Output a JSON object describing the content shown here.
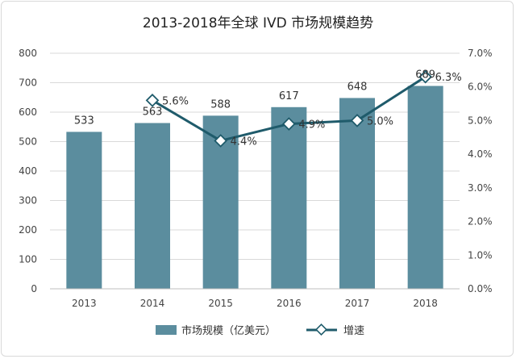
{
  "chart_data": {
    "type": "bar",
    "title": "2013-2018年全球 IVD 市场规模趋势",
    "categories": [
      "2013",
      "2014",
      "2015",
      "2016",
      "2017",
      "2018"
    ],
    "series": [
      {
        "name": "市场规模（亿美元）",
        "type": "bar",
        "axis": "left",
        "values": [
          533,
          563,
          588,
          617,
          648,
          689
        ],
        "labels": [
          "533",
          "563",
          "588",
          "617",
          "648",
          "689"
        ],
        "color": "#5b8d9e"
      },
      {
        "name": "增速",
        "type": "line",
        "axis": "right",
        "values": [
          null,
          5.6,
          4.4,
          4.9,
          5.0,
          6.3
        ],
        "labels": [
          "",
          "5.6%",
          "4.4%",
          "4.9%",
          "5.0%",
          "6.3%"
        ],
        "color": "#1f5b6b"
      }
    ],
    "y_left": {
      "min": 0,
      "max": 800,
      "ticks": [
        "0",
        "100",
        "200",
        "300",
        "400",
        "500",
        "600",
        "700",
        "800"
      ]
    },
    "y_right": {
      "min": 0,
      "max": 7,
      "ticks": [
        "0.0%",
        "1.0%",
        "2.0%",
        "3.0%",
        "4.0%",
        "5.0%",
        "6.0%",
        "7.0%"
      ]
    },
    "grid": true,
    "legend": "bottom"
  }
}
